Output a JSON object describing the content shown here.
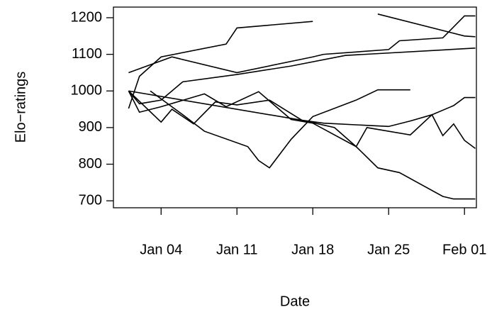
{
  "chart_data": {
    "type": "line",
    "x_label": "Date",
    "y_label": "Elo−ratings",
    "color": "#000000",
    "series": [
      {
        "x": [
          0,
          1,
          3,
          9,
          10,
          17
        ],
        "values": [
          952,
          1040,
          1093,
          1128,
          1172,
          1190
        ]
      },
      {
        "x": [
          0,
          4,
          10,
          17,
          18,
          24,
          25,
          29,
          31,
          32
        ],
        "values": [
          1050,
          1093,
          1050,
          1093,
          1100,
          1113,
          1137,
          1145,
          1205,
          1205
        ]
      },
      {
        "x": [
          23,
          31,
          32
        ],
        "values": [
          1210,
          1150,
          1148
        ]
      },
      {
        "x": [
          0,
          1,
          3,
          5,
          10,
          15,
          20,
          32
        ],
        "values": [
          1000,
          965,
          975,
          1025,
          1045,
          1068,
          1097,
          1117
        ]
      },
      {
        "x": [
          0,
          1,
          3,
          7,
          9,
          12,
          15,
          17,
          21,
          22,
          26,
          28,
          29,
          30,
          31,
          32
        ],
        "values": [
          1000,
          942,
          957,
          992,
          957,
          998,
          922,
          912,
          848,
          900,
          880,
          935,
          878,
          910,
          865,
          843
        ]
      },
      {
        "x": [
          0,
          3,
          4,
          6,
          8,
          10,
          13,
          16,
          19,
          21,
          23,
          25,
          29,
          30,
          32
        ],
        "values": [
          1000,
          915,
          950,
          910,
          970,
          962,
          975,
          920,
          900,
          848,
          790,
          777,
          712,
          705,
          705
        ]
      },
      {
        "x": [
          0,
          16,
          18,
          24,
          26,
          28,
          30,
          31,
          32
        ],
        "values": [
          1000,
          920,
          912,
          903,
          918,
          935,
          960,
          982,
          982
        ]
      },
      {
        "x": [
          2,
          5,
          7,
          11,
          12,
          13,
          15,
          17,
          21,
          23,
          26
        ],
        "values": [
          1000,
          935,
          890,
          848,
          810,
          790,
          868,
          930,
          975,
          1003,
          1003
        ]
      }
    ],
    "xlim": [
      -1.4,
      32.1
    ],
    "xticks": [
      {
        "value": 3,
        "label": "Jan 04"
      },
      {
        "value": 10,
        "label": "Jan 11"
      },
      {
        "value": 17,
        "label": "Jan 18"
      },
      {
        "value": 24,
        "label": "Jan 25"
      },
      {
        "value": 31,
        "label": "Feb 01"
      }
    ],
    "ylim": [
      681,
      1229
    ],
    "yticks": [
      700,
      800,
      900,
      1000,
      1100,
      1200
    ]
  }
}
